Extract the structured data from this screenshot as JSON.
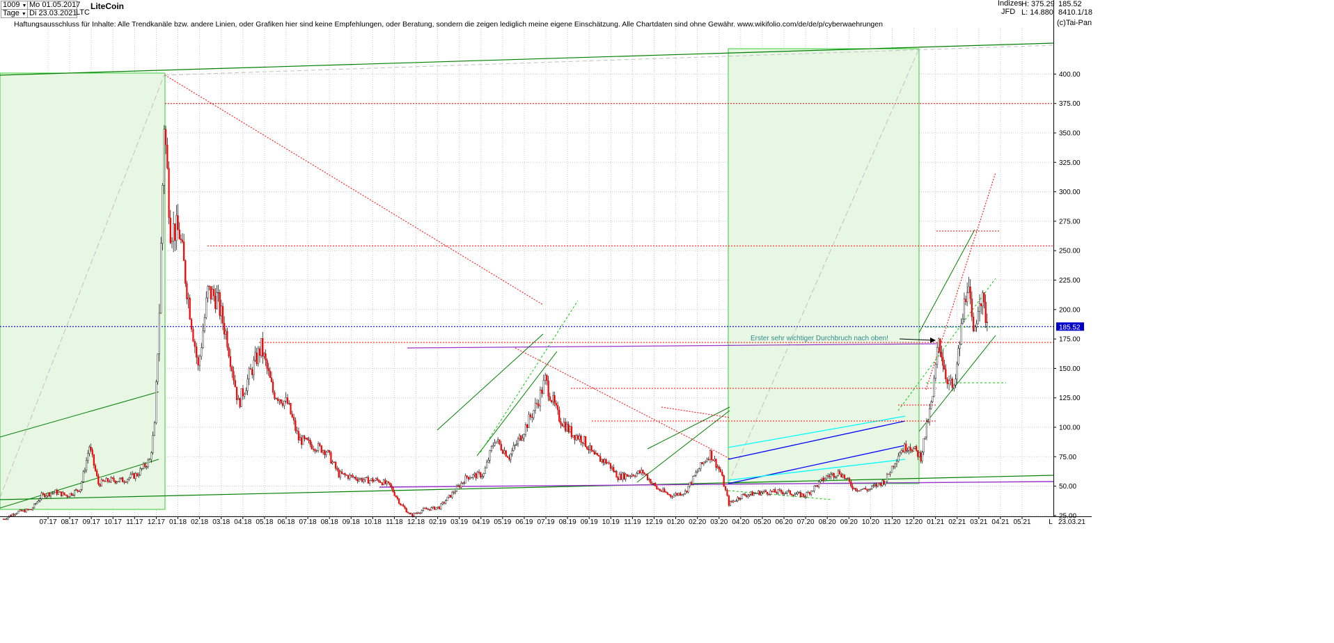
{
  "header": {
    "count": "1009",
    "start_date": "Mo 01.05.2017",
    "period": "Tage",
    "end_date": "Di 23.03.2021",
    "symbol": "LTC",
    "title": "LiteCoin",
    "category": "Indizes",
    "source": "JFD",
    "high": "H: 375.29",
    "low": "L: 14.880",
    "last": "185.52",
    "version": "8410.1/18",
    "copyright": "(c)Tai-Pan"
  },
  "disclaimer": "Haftungsausschluss für Inhalte: Alle Trendkanäle bzw. andere Linien, oder Grafiken hier sind keine Empfehlungen, oder Beratung, sondern die zeigen lediglich meine eigene Einschätzung. Alle Chartdaten sind ohne Gewähr.  www.wikifolio.com/de/de/p/cyberwaehrungen",
  "annotation": "Erster sehr wichtiger Durchbruch nach oben!",
  "colors": {
    "candle": "#ff0000",
    "wick": "#000000",
    "channel": "#008000",
    "support_dashed": "#00cc00",
    "resistance_dotted": "#ff0000",
    "highlight_fill": "#e8f7e4",
    "highlight_border": "#33cc33",
    "current_price_line": "#0000cc",
    "purple_level": "#9933cc",
    "blue_channel": "#0000ff",
    "cyan_channel": "#00ffff",
    "annotation_text": "#2e8b8b",
    "price_tag_bg": "#0000cc"
  },
  "chart_data": {
    "type": "candlestick",
    "title": "LiteCoin",
    "ylim": [
      14.88,
      420
    ],
    "y_ticks": [
      "25.00",
      "50.00",
      "75.00",
      "100.00",
      "125.00",
      "150.00",
      "175.00",
      "200.00",
      "225.00",
      "250.00",
      "275.00",
      "300.00",
      "325.00",
      "350.00",
      "375.00",
      "400.00"
    ],
    "x_ticks": [
      "07.17",
      "08.17",
      "09.17",
      "10.17",
      "11.17",
      "12.17",
      "01.18",
      "02.18",
      "03.18",
      "04.18",
      "05.18",
      "06.18",
      "07.18",
      "08.18",
      "09.18",
      "10.18",
      "11.18",
      "12.18",
      "02.19",
      "03.19",
      "04.19",
      "05.19",
      "06.19",
      "07.19",
      "08.19",
      "09.19",
      "10.19",
      "11.19",
      "12.19",
      "01.20",
      "02.20",
      "03.20",
      "04.20",
      "05.20",
      "06.20",
      "07.20",
      "08.20",
      "09.20",
      "10.20",
      "11.20",
      "12.20",
      "01.21",
      "02.21",
      "03.21",
      "04.21",
      "05.21"
    ],
    "x_end_label": "23.03.21",
    "x_scale_marker": "L",
    "last_price": "185.52",
    "series_close": [
      {
        "date": "2017-05-01",
        "close": 22
      },
      {
        "date": "2017-05-20",
        "close": 28
      },
      {
        "date": "2017-06-10",
        "close": 30
      },
      {
        "date": "2017-06-25",
        "close": 42
      },
      {
        "date": "2017-07-15",
        "close": 45
      },
      {
        "date": "2017-08-01",
        "close": 42
      },
      {
        "date": "2017-08-20",
        "close": 48
      },
      {
        "date": "2017-09-02",
        "close": 84
      },
      {
        "date": "2017-09-15",
        "close": 52
      },
      {
        "date": "2017-10-01",
        "close": 55
      },
      {
        "date": "2017-10-20",
        "close": 55
      },
      {
        "date": "2017-11-10",
        "close": 60
      },
      {
        "date": "2017-11-28",
        "close": 72
      },
      {
        "date": "2017-12-05",
        "close": 100
      },
      {
        "date": "2017-12-12",
        "close": 200
      },
      {
        "date": "2017-12-19",
        "close": 360
      },
      {
        "date": "2017-12-28",
        "close": 270
      },
      {
        "date": "2018-01-10",
        "close": 265
      },
      {
        "date": "2018-01-25",
        "close": 200
      },
      {
        "date": "2018-02-06",
        "close": 150
      },
      {
        "date": "2018-02-20",
        "close": 215
      },
      {
        "date": "2018-03-05",
        "close": 210
      },
      {
        "date": "2018-03-20",
        "close": 175
      },
      {
        "date": "2018-04-05",
        "close": 120
      },
      {
        "date": "2018-04-25",
        "close": 150
      },
      {
        "date": "2018-05-08",
        "close": 168
      },
      {
        "date": "2018-05-25",
        "close": 130
      },
      {
        "date": "2018-06-15",
        "close": 120
      },
      {
        "date": "2018-07-01",
        "close": 90
      },
      {
        "date": "2018-07-20",
        "close": 85
      },
      {
        "date": "2018-08-10",
        "close": 80
      },
      {
        "date": "2018-08-28",
        "close": 60
      },
      {
        "date": "2018-09-15",
        "close": 58
      },
      {
        "date": "2018-10-05",
        "close": 55
      },
      {
        "date": "2018-10-25",
        "close": 55
      },
      {
        "date": "2018-11-10",
        "close": 50
      },
      {
        "date": "2018-11-25",
        "close": 35
      },
      {
        "date": "2018-12-10",
        "close": 25
      },
      {
        "date": "2018-12-28",
        "close": 30
      },
      {
        "date": "2019-01-20",
        "close": 32
      },
      {
        "date": "2019-02-10",
        "close": 45
      },
      {
        "date": "2019-03-01",
        "close": 58
      },
      {
        "date": "2019-03-25",
        "close": 60
      },
      {
        "date": "2019-04-10",
        "close": 90
      },
      {
        "date": "2019-05-01",
        "close": 75
      },
      {
        "date": "2019-05-20",
        "close": 95
      },
      {
        "date": "2019-06-10",
        "close": 120
      },
      {
        "date": "2019-06-22",
        "close": 140
      },
      {
        "date": "2019-07-10",
        "close": 110
      },
      {
        "date": "2019-07-30",
        "close": 95
      },
      {
        "date": "2019-08-15",
        "close": 90
      },
      {
        "date": "2019-09-01",
        "close": 75
      },
      {
        "date": "2019-09-20",
        "close": 70
      },
      {
        "date": "2019-10-05",
        "close": 58
      },
      {
        "date": "2019-10-25",
        "close": 60
      },
      {
        "date": "2019-11-10",
        "close": 62
      },
      {
        "date": "2019-11-30",
        "close": 48
      },
      {
        "date": "2019-12-20",
        "close": 42
      },
      {
        "date": "2020-01-10",
        "close": 45
      },
      {
        "date": "2020-01-30",
        "close": 65
      },
      {
        "date": "2020-02-15",
        "close": 78
      },
      {
        "date": "2020-03-01",
        "close": 62
      },
      {
        "date": "2020-03-13",
        "close": 35
      },
      {
        "date": "2020-04-01",
        "close": 42
      },
      {
        "date": "2020-05-01",
        "close": 45
      },
      {
        "date": "2020-06-01",
        "close": 45
      },
      {
        "date": "2020-07-01",
        "close": 42
      },
      {
        "date": "2020-08-01",
        "close": 58
      },
      {
        "date": "2020-08-20",
        "close": 62
      },
      {
        "date": "2020-09-10",
        "close": 48
      },
      {
        "date": "2020-10-01",
        "close": 47
      },
      {
        "date": "2020-10-25",
        "close": 55
      },
      {
        "date": "2020-11-15",
        "close": 80
      },
      {
        "date": "2020-11-28",
        "close": 85
      },
      {
        "date": "2020-12-15",
        "close": 75
      },
      {
        "date": "2021-01-01",
        "close": 125
      },
      {
        "date": "2021-01-10",
        "close": 175
      },
      {
        "date": "2021-01-20",
        "close": 145
      },
      {
        "date": "2021-02-01",
        "close": 130
      },
      {
        "date": "2021-02-20",
        "close": 225
      },
      {
        "date": "2021-03-01",
        "close": 175
      },
      {
        "date": "2021-03-10",
        "close": 215
      },
      {
        "date": "2021-03-23",
        "close": 185.52
      }
    ],
    "horizontal_levels": [
      375,
      254,
      172,
      185.52,
      144
    ]
  }
}
